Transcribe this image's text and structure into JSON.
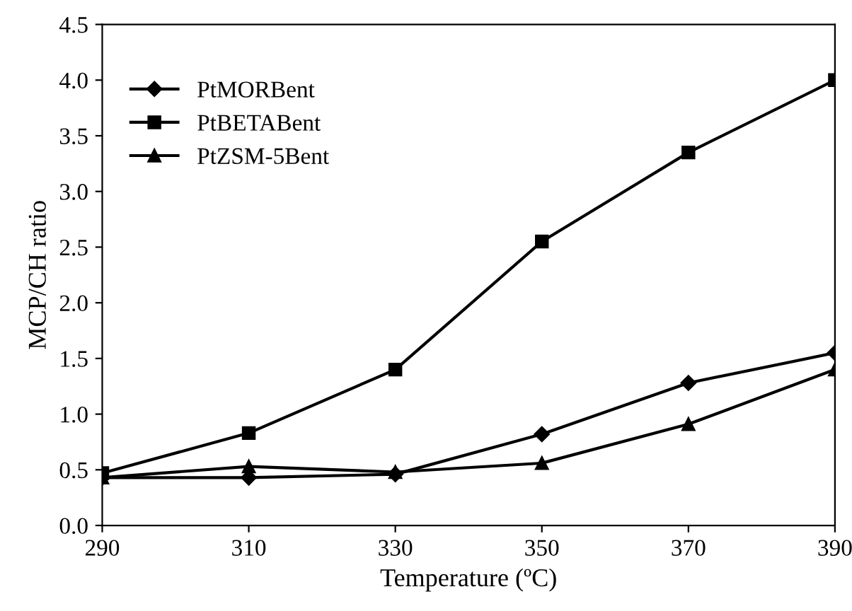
{
  "chart_data": {
    "type": "line",
    "xlabel": "Temperature (ºC)",
    "ylabel": "MCP/CH ratio",
    "x": [
      290,
      310,
      330,
      350,
      370,
      390
    ],
    "series": [
      {
        "name": "PtMORBent",
        "color": "#000000",
        "marker": "diamond",
        "values": [
          0.43,
          0.43,
          0.46,
          0.82,
          1.28,
          1.55
        ]
      },
      {
        "name": "PtBETABent",
        "color": "#000000",
        "marker": "square",
        "values": [
          0.47,
          0.83,
          1.4,
          2.55,
          3.35,
          4.0
        ]
      },
      {
        "name": "PtZSM-5Bent",
        "color": "#000000",
        "marker": "triangle",
        "values": [
          0.43,
          0.53,
          0.48,
          0.56,
          0.91,
          1.4
        ]
      }
    ],
    "xlim": [
      290,
      390
    ],
    "xticks": [
      290,
      310,
      330,
      350,
      370,
      390
    ],
    "ylim": [
      0,
      4.5
    ],
    "yticks": [
      {
        "value": 0,
        "label": "0.0"
      },
      {
        "value": 0.5,
        "label": "0.5"
      },
      {
        "value": 1,
        "label": "1.0"
      },
      {
        "value": 1.5,
        "label": "1.5"
      },
      {
        "value": 2,
        "label": "2.0"
      },
      {
        "value": 2.5,
        "label": "2.5"
      },
      {
        "value": 3,
        "label": "3.0"
      },
      {
        "value": 3.5,
        "label": "3.5"
      },
      {
        "value": 4,
        "label": "4.0"
      },
      {
        "value": 4.5,
        "label": "4.5"
      }
    ],
    "legend": "top left",
    "grid": false,
    "line_style": "solid"
  }
}
